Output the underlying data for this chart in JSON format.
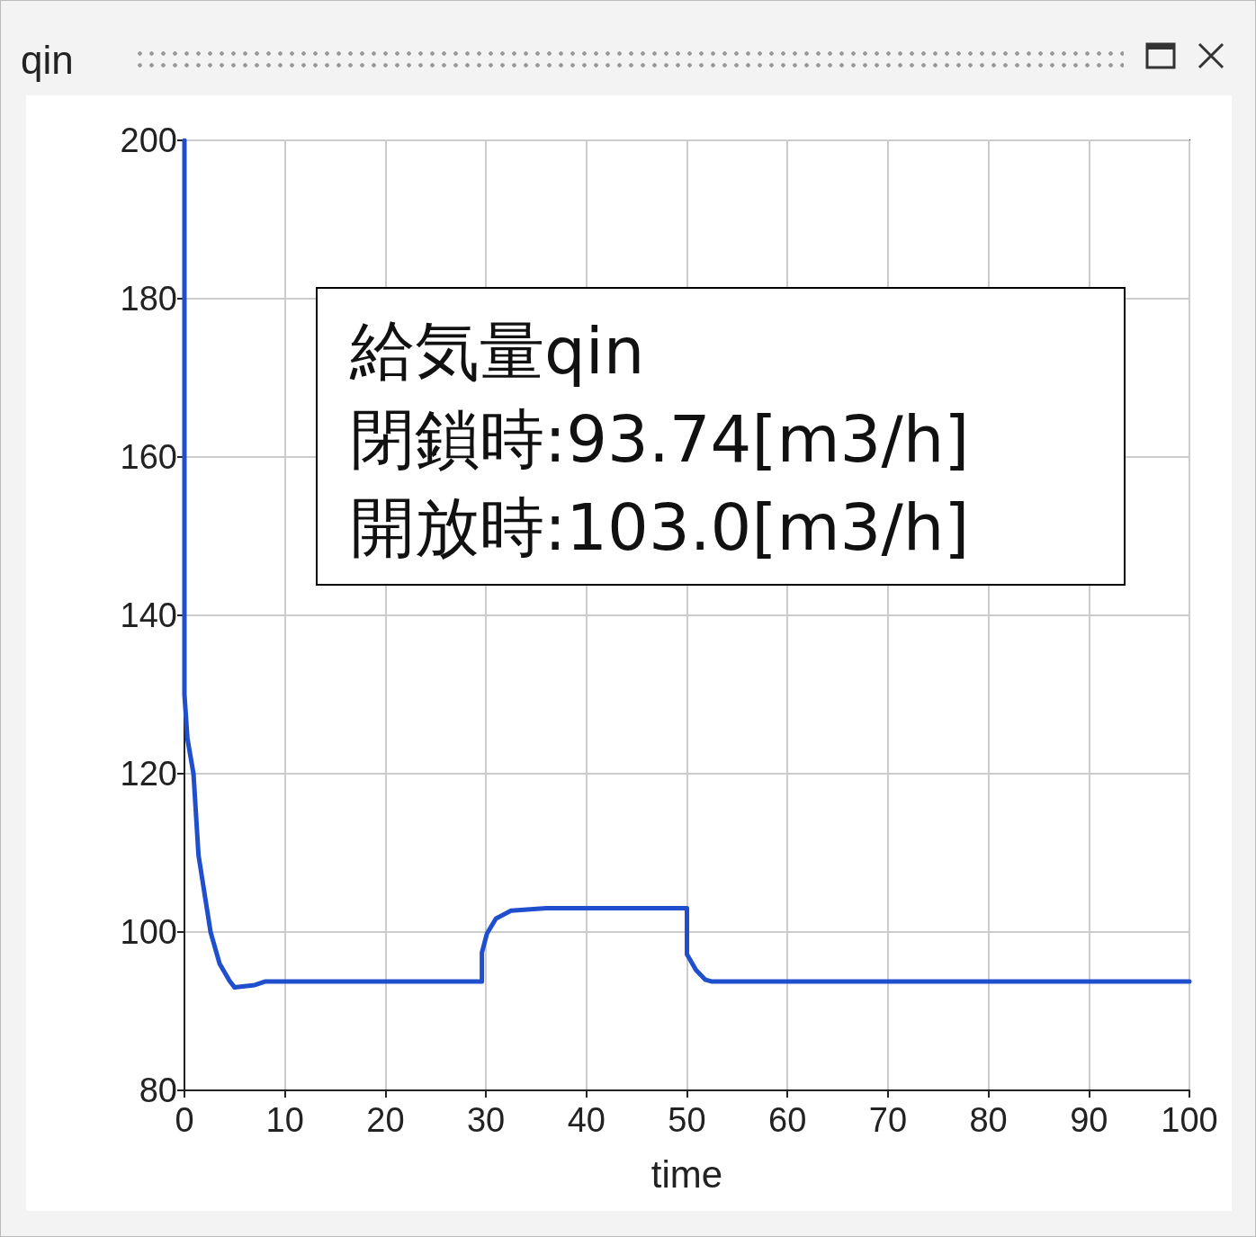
{
  "chart_data": {
    "type": "line",
    "title": "qin",
    "xlabel": "time",
    "annotations": [
      "給気量qin",
      "閉鎖時:93.74[m3/h]",
      "開放時:103.0[m3/h]"
    ],
    "x": [
      0,
      0,
      0.3,
      0.9,
      1.4,
      2.6,
      3.5,
      4.5,
      5,
      7,
      8,
      29.6,
      29.6,
      30.1,
      31,
      32.5,
      36,
      50,
      50,
      50.9,
      51.8,
      52.5,
      100
    ],
    "series": [
      {
        "color": "#1f4fcc",
        "values": [
          200,
          130,
          124.4,
          120,
          109.7,
          100,
          96,
          93.8,
          93,
          93.3,
          93.74,
          93.74,
          97.4,
          99.8,
          101.7,
          102.7,
          103.0,
          103.0,
          97.2,
          95.2,
          94,
          93.74,
          93.74
        ]
      }
    ],
    "xlim": [
      0,
      100
    ],
    "xticks": [
      0,
      10,
      20,
      30,
      40,
      50,
      60,
      70,
      80,
      90,
      100
    ],
    "ylim": [
      80,
      200
    ],
    "yticks": [
      80,
      100,
      120,
      140,
      160,
      180,
      200
    ],
    "grid": true,
    "marker": "none",
    "line_style": "solid"
  }
}
